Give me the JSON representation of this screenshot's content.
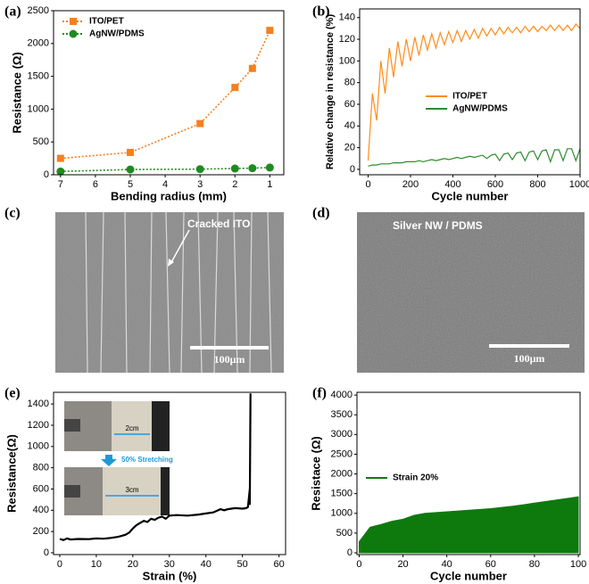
{
  "chart_data": [
    {
      "type": "line",
      "panel_label": "(a)",
      "x_label": "Bending radius (mm)",
      "y_label": "Resistance (Ω)",
      "x": [
        7,
        5,
        3,
        2,
        1.5,
        1
      ],
      "series": [
        {
          "name": "ITO/PET",
          "color": "#f5801e",
          "marker": "square",
          "linestyle": "dotted",
          "values": [
            250,
            340,
            780,
            1330,
            1620,
            2200
          ]
        },
        {
          "name": "AgNW/PDMS",
          "color": "#1f8a1f",
          "marker": "circle",
          "linestyle": "dotted",
          "values": [
            50,
            80,
            85,
            95,
            100,
            110
          ]
        }
      ],
      "xlim": [
        7.2,
        0.6
      ],
      "xticks": [
        7,
        6,
        5,
        4,
        3,
        2,
        1
      ],
      "ylim": [
        0,
        2500
      ],
      "yticks": [
        0,
        500,
        1000,
        1500,
        2000,
        2500
      ],
      "legend": "upper left"
    },
    {
      "type": "line",
      "panel_label": "(b)",
      "x_label": "Cycle number",
      "y_label": "Relative change in resistance (%)",
      "x": [
        0,
        20,
        40,
        60,
        80,
        100,
        120,
        140,
        160,
        180,
        200,
        220,
        240,
        260,
        280,
        300,
        320,
        340,
        360,
        380,
        400,
        420,
        440,
        460,
        480,
        500,
        520,
        540,
        560,
        580,
        600,
        620,
        640,
        660,
        680,
        700,
        720,
        740,
        760,
        780,
        800,
        820,
        840,
        860,
        880,
        900,
        920,
        940,
        960,
        980,
        1000
      ],
      "series": [
        {
          "name": "ITO/PET",
          "color": "#ff8c1a",
          "linestyle": "solid",
          "values": [
            8,
            70,
            45,
            100,
            70,
            112,
            85,
            118,
            95,
            120,
            100,
            122,
            105,
            124,
            110,
            125,
            112,
            126,
            115,
            127,
            117,
            128,
            118,
            128,
            120,
            129,
            121,
            130,
            123,
            130,
            124,
            131,
            125,
            131,
            126,
            131,
            126,
            132,
            127,
            132,
            127,
            132,
            128,
            133,
            128,
            133,
            128,
            133,
            128,
            134,
            130
          ]
        },
        {
          "name": "AgNW/PDMS",
          "color": "#2e8b2e",
          "linestyle": "solid",
          "values": [
            3,
            4,
            4,
            5,
            5,
            5,
            6,
            6,
            6,
            7,
            7,
            7,
            8,
            7,
            8,
            9,
            8,
            9,
            10,
            9,
            10,
            11,
            10,
            11,
            12,
            11,
            12,
            13,
            10,
            13,
            14,
            8,
            14,
            15,
            9,
            15,
            16,
            8,
            16,
            17,
            9,
            17,
            18,
            7,
            18,
            18,
            8,
            19,
            19,
            8,
            19
          ]
        }
      ],
      "xlim": [
        -40,
        1000
      ],
      "xticks": [
        0,
        200,
        400,
        600,
        800,
        1000
      ],
      "ylim": [
        -5,
        148
      ],
      "yticks": [
        0,
        20,
        40,
        60,
        80,
        100,
        120,
        140
      ],
      "legend": "center right"
    },
    {
      "type": "line",
      "panel_label": "(e)",
      "x_label": "Strain (%)",
      "y_label": "Resistance(Ω)",
      "x": [
        0,
        1,
        2,
        3,
        5,
        8,
        10,
        12,
        14,
        15,
        16,
        17,
        18,
        19,
        20,
        21,
        22,
        23,
        24,
        25,
        26,
        27,
        28,
        29,
        30,
        32,
        35,
        38,
        40,
        42,
        44,
        45,
        46,
        48,
        50,
        51,
        51.5,
        52,
        52,
        52.2
      ],
      "series": [
        {
          "color": "#000000",
          "linestyle": "solid",
          "values": [
            130,
            120,
            135,
            125,
            130,
            128,
            135,
            132,
            140,
            145,
            150,
            160,
            170,
            190,
            230,
            260,
            280,
            300,
            290,
            320,
            310,
            330,
            340,
            320,
            350,
            355,
            350,
            360,
            370,
            380,
            410,
            400,
            410,
            420,
            415,
            420,
            430,
            600,
            450,
            1500
          ]
        }
      ],
      "xlim": [
        -1.7,
        61.8
      ],
      "xticks": [
        0,
        10,
        20,
        30,
        40,
        50,
        60
      ],
      "ylim": [
        -17,
        1510
      ],
      "yticks": [
        0,
        200,
        400,
        600,
        800,
        1000,
        1200,
        1400
      ],
      "annotations": [
        "2cm",
        "50% Stretching",
        "3cm"
      ]
    },
    {
      "type": "area",
      "panel_label": "(f)",
      "x_label": "Cycle number",
      "y_label": "Resistace (Ω)",
      "x": [
        0,
        5,
        10,
        15,
        20,
        25,
        30,
        35,
        40,
        45,
        50,
        55,
        60,
        65,
        70,
        75,
        80,
        85,
        90,
        95,
        100
      ],
      "series": [
        {
          "name": "Strain 20%",
          "color": "#0e7a0e",
          "values": [
            280,
            650,
            720,
            800,
            850,
            950,
            1000,
            1020,
            1040,
            1060,
            1080,
            1100,
            1120,
            1150,
            1180,
            1220,
            1260,
            1300,
            1340,
            1380,
            1420
          ]
        }
      ],
      "xlim": [
        -1,
        100.8
      ],
      "xticks": [
        0,
        20,
        40,
        60,
        80,
        100
      ],
      "ylim": [
        -45,
        4070
      ],
      "yticks": [
        0,
        500,
        1000,
        1500,
        2000,
        2500,
        3000,
        3500,
        4000
      ],
      "legend": "center left"
    }
  ],
  "images": [
    {
      "panel_label": "(c)",
      "annotation": "Cracked ITO",
      "scale_bar": "100μm"
    },
    {
      "panel_label": "(d)",
      "annotation": "Silver NW / PDMS",
      "scale_bar": "100μm"
    }
  ]
}
